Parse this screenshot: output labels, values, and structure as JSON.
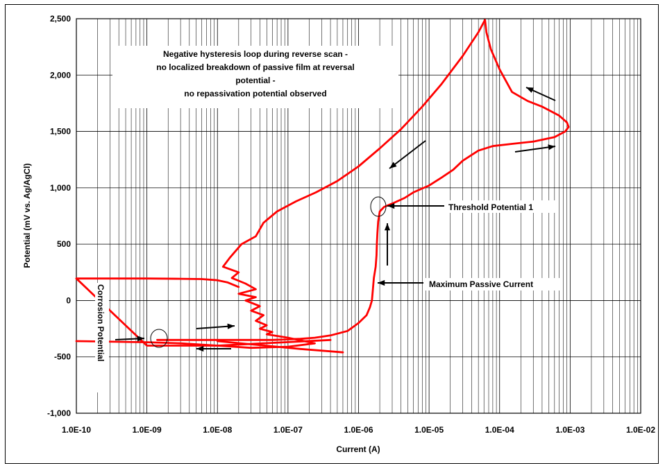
{
  "chart_data": {
    "type": "line",
    "xlabel": "Current (A)",
    "ylabel": "Potential (mV vs. Ag/AgCl)",
    "x_scale": "log",
    "xlim": [
      1e-10,
      0.01
    ],
    "ylim": [
      -1000,
      2500
    ],
    "x_tick_labels": [
      "1.0E-10",
      "1.0E-09",
      "1.0E-08",
      "1.0E-07",
      "1.0E-06",
      "1.0E-05",
      "1.0E-04",
      "1.0E-03",
      "1.0E-02"
    ],
    "y_tick_labels": [
      "-1,000",
      "-500",
      "0",
      "500",
      "1,000",
      "1,500",
      "2,000",
      "2,500"
    ],
    "grid": true,
    "line_color": "#ff0000",
    "series": [
      {
        "x": [
          1.4e-09,
          5e-09,
          2e-08,
          6e-08,
          1.5e-07,
          2.4e-07,
          4e-07,
          7e-07,
          1e-06,
          1.3e-06,
          1.45e-06,
          1.55e-06,
          1.6e-06,
          1.65e-06,
          1.75e-06,
          1.8e-06,
          1.82e-06,
          1.85e-06,
          1.9e-06,
          2e-06,
          2.3e-06,
          3e-06,
          4.5e-06,
          6e-06,
          1e-05,
          1.5e-05,
          2.2e-05,
          3e-05,
          5e-05,
          8e-05,
          0.00015,
          0.0003,
          0.0006,
          0.00085,
          0.00095,
          0.0009,
          0.0007,
          0.0004,
          0.00025,
          0.00015,
          0.0001,
          7.5e-05,
          6.5e-05,
          6.2e-05,
          5e-05,
          3e-05,
          1.5e-05,
          8e-06,
          4e-06,
          2e-06,
          1e-06,
          5e-07,
          2.5e-07,
          1.3e-07,
          7e-08,
          4.5e-08,
          3.5e-08,
          2.2e-08,
          1.5e-08,
          1.2e-08,
          2e-08,
          1.6e-08,
          2.5e-08,
          3.5e-08,
          2e-08,
          3.5e-08,
          2.5e-08,
          4e-08,
          3e-08,
          4.5e-08,
          3.5e-08,
          5e-08,
          4e-08,
          6e-08,
          5e-08,
          8e-08,
          1e-07,
          2.4e-07,
          1e-07,
          3e-08,
          1e-08,
          3e-09,
          1e-09,
          1e-10
        ],
        "y": [
          -350,
          -350,
          -350,
          -350,
          -340,
          -330,
          -310,
          -270,
          -200,
          -130,
          -60,
          0,
          100,
          200,
          300,
          400,
          500,
          600,
          700,
          790,
          830,
          860,
          910,
          960,
          1020,
          1090,
          1160,
          1240,
          1330,
          1370,
          1390,
          1410,
          1450,
          1500,
          1540,
          1580,
          1640,
          1720,
          1770,
          1850,
          2050,
          2230,
          2380,
          2490,
          2380,
          2170,
          1920,
          1720,
          1520,
          1350,
          1190,
          1060,
          960,
          880,
          790,
          690,
          570,
          500,
          380,
          300,
          250,
          200,
          150,
          100,
          60,
          30,
          0,
          -50,
          -90,
          -130,
          -180,
          -220,
          -250,
          -280,
          -300,
          -320,
          -330,
          -380,
          -410,
          -420,
          -400,
          -380,
          -370,
          -360
        ]
      },
      {
        "x": [
          4e-07,
          1e-08,
          1e-09,
          1e-10
        ],
        "y": [
          -350,
          -400,
          -400,
          195
        ]
      },
      {
        "x": [
          1e-10,
          1e-09,
          3e-09,
          6e-09,
          1e-08,
          1.4e-08,
          2e-08
        ],
        "y": [
          195,
          195,
          193,
          190,
          180,
          160,
          120
        ]
      },
      {
        "x": [
          1e-08,
          1.5e-07,
          6e-07
        ],
        "y": [
          -360,
          -430,
          -460
        ]
      }
    ],
    "annotations": [
      {
        "text": "Threshold Potential 1"
      },
      {
        "text": "Maximum Passive Current"
      },
      {
        "text": "Corrosion Potential"
      }
    ],
    "note_lines": [
      "Negative hysteresis loop during reverse scan -",
      "no localized breakdown of passive film at reversal",
      "potential -",
      "no repassivation potential observed"
    ]
  }
}
